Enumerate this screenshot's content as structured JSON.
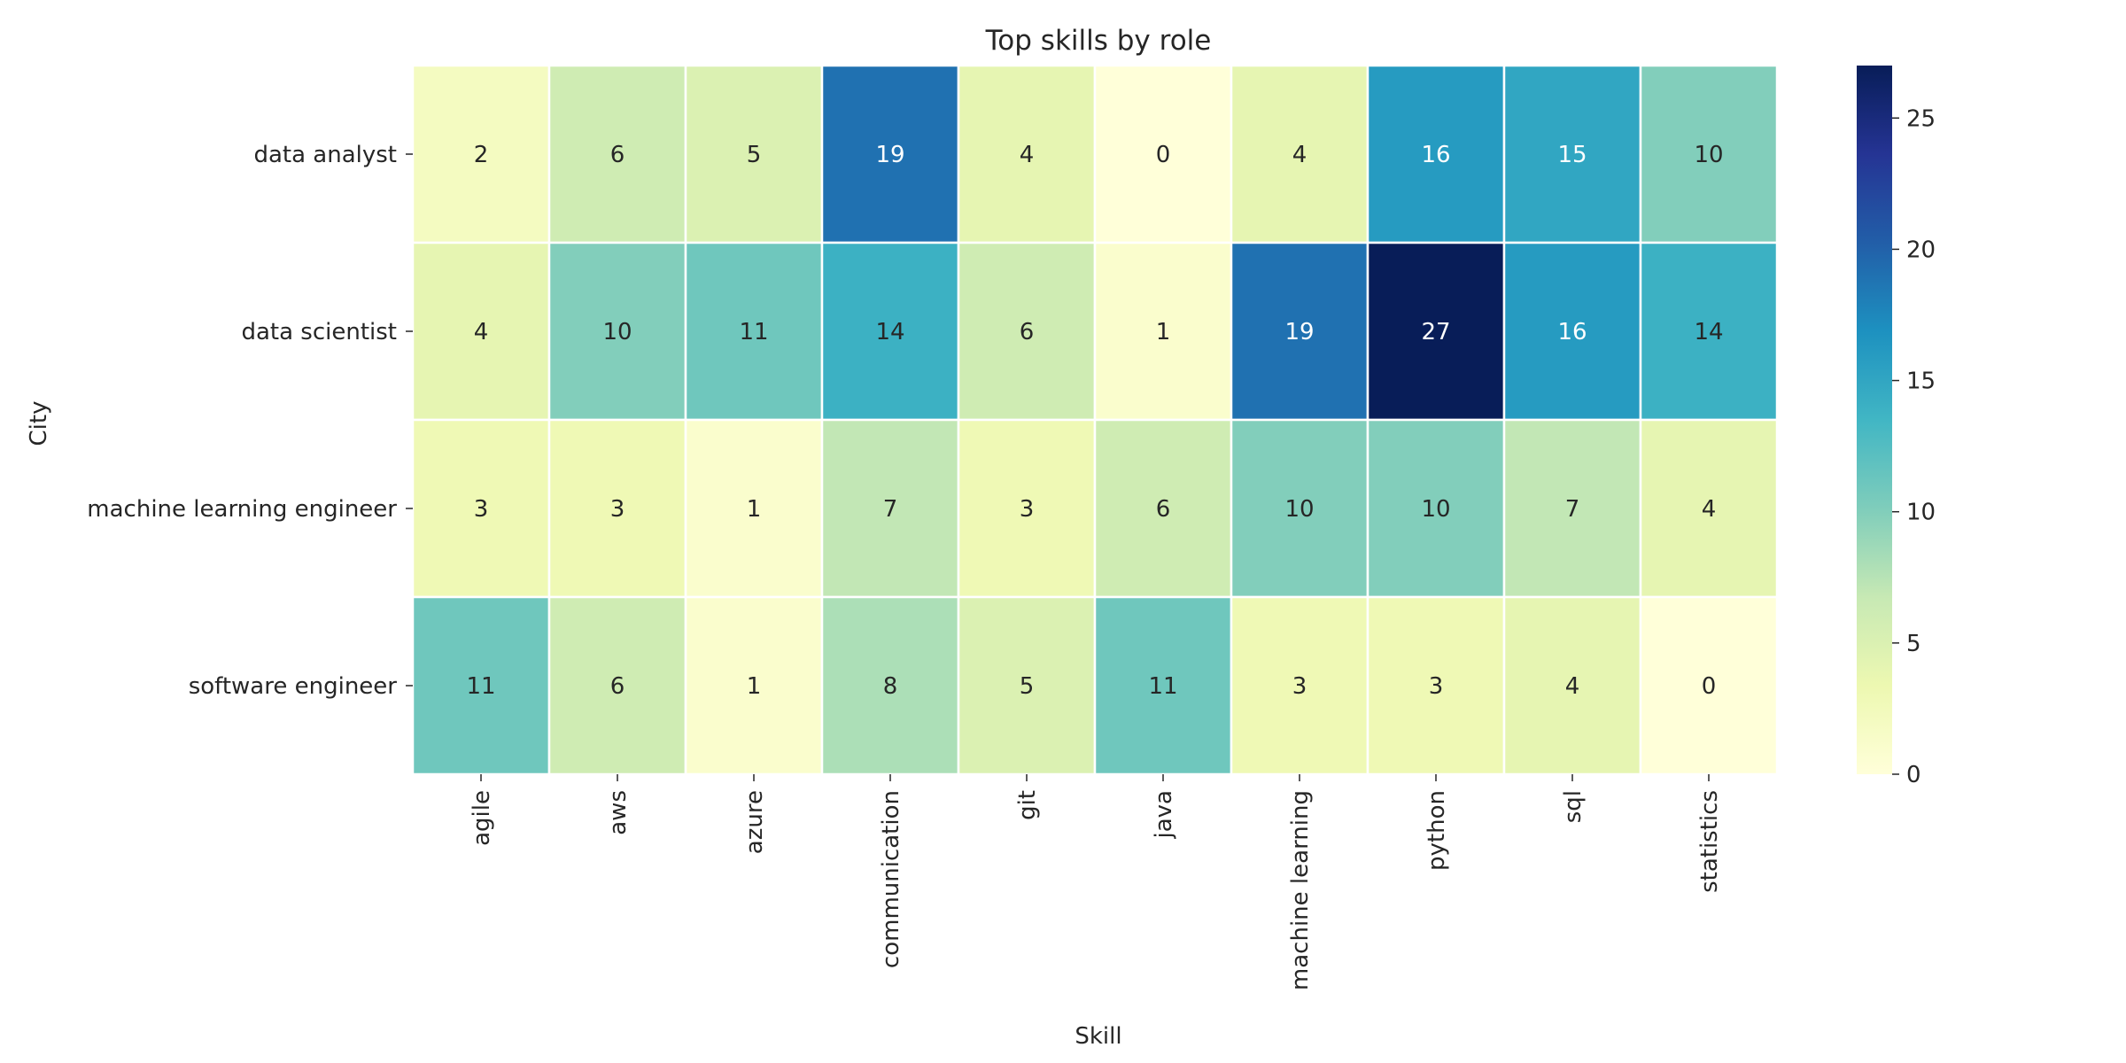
{
  "chart_data": {
    "type": "heatmap",
    "title": "Top skills by role",
    "xlabel": "Skill",
    "ylabel": "City",
    "x_categories": [
      "agile",
      "aws",
      "azure",
      "communication",
      "git",
      "java",
      "machine learning",
      "python",
      "sql",
      "statistics"
    ],
    "y_categories": [
      "data analyst",
      "data scientist",
      "machine learning engineer",
      "software engineer"
    ],
    "values": [
      [
        2,
        6,
        5,
        19,
        4,
        0,
        4,
        16,
        15,
        10
      ],
      [
        4,
        10,
        11,
        14,
        6,
        1,
        19,
        27,
        16,
        14
      ],
      [
        3,
        3,
        1,
        7,
        3,
        6,
        10,
        10,
        7,
        4
      ],
      [
        11,
        6,
        1,
        8,
        5,
        11,
        3,
        3,
        4,
        0
      ]
    ],
    "colorscale": "YlGnBu",
    "color_range": [
      0,
      27
    ],
    "colorbar_ticks": [
      0,
      5,
      10,
      15,
      20,
      25
    ],
    "annotations": true,
    "legend": "colorbar-right"
  }
}
